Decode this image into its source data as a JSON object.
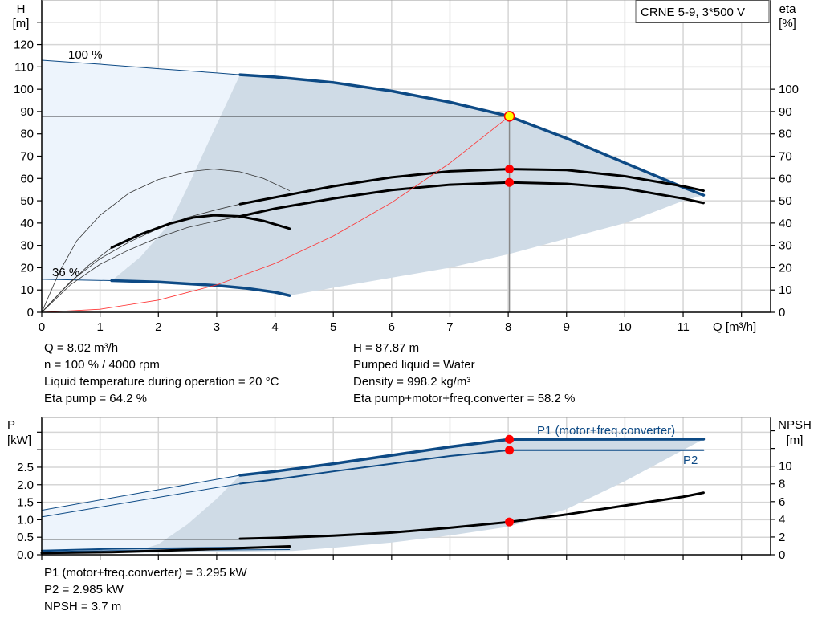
{
  "chart_data": [
    {
      "type": "line",
      "title": "",
      "legend_box": "CRNE 5-9, 3*500 V",
      "xlabel": "Q [m³/h]",
      "ylabel_left": [
        "H",
        "[m]"
      ],
      "ylabel_right": [
        "eta",
        "[%]"
      ],
      "x_ticks": [
        "0",
        "1",
        "2",
        "3",
        "4",
        "5",
        "6",
        "7",
        "8",
        "9",
        "10",
        "11"
      ],
      "y_left_ticks": [
        "0",
        "10",
        "20",
        "30",
        "40",
        "50",
        "60",
        "70",
        "80",
        "90",
        "100",
        "110",
        "120"
      ],
      "y_right_ticks": [
        "0",
        "10",
        "20",
        "30",
        "40",
        "50",
        "60",
        "70",
        "80",
        "90",
        "100"
      ],
      "xlim": [
        0,
        12.5
      ],
      "ylim_left": [
        0,
        140
      ],
      "ylim_right": [
        0,
        140
      ],
      "grid": true,
      "speed_labels": [
        "100 %",
        "36 %"
      ],
      "operating_range_dark": [
        [
          1.2,
          14.2
        ],
        [
          1.7,
          25
        ],
        [
          2.2,
          40
        ],
        [
          2.5,
          56
        ],
        [
          2.96,
          82
        ],
        [
          3.4,
          106.5
        ],
        [
          4,
          105.5
        ],
        [
          5,
          103
        ],
        [
          6,
          99
        ],
        [
          7,
          94
        ],
        [
          8,
          88
        ],
        [
          9,
          78
        ],
        [
          10,
          67
        ],
        [
          11,
          56
        ],
        [
          11.35,
          52.5
        ],
        [
          11,
          50
        ],
        [
          10,
          40
        ],
        [
          9,
          33
        ],
        [
          8,
          26
        ],
        [
          7,
          20
        ],
        [
          6,
          15.5
        ],
        [
          5,
          11
        ],
        [
          4.25,
          7.5
        ],
        [
          4,
          9
        ],
        [
          3,
          12
        ],
        [
          2,
          13.5
        ]
      ],
      "operating_range_light": [
        [
          0,
          113
        ],
        [
          1,
          111.2
        ],
        [
          2,
          109.2
        ],
        [
          3,
          107.3
        ],
        [
          3.4,
          106.5
        ],
        [
          2.96,
          82
        ],
        [
          2.5,
          56
        ],
        [
          2.2,
          40
        ],
        [
          1.7,
          25
        ],
        [
          1.2,
          14.2
        ],
        [
          0,
          14.8
        ]
      ],
      "series": [
        {
          "key": "h_100_ext",
          "axis": "left",
          "style": "thin-blue",
          "points": [
            [
              0,
              113
            ],
            [
              1,
              111.2
            ],
            [
              2,
              109.2
            ],
            [
              3,
              107.3
            ],
            [
              3.4,
              106.5
            ]
          ]
        },
        {
          "key": "h_100",
          "axis": "left",
          "style": "thick-blue",
          "points": [
            [
              3.4,
              106.5
            ],
            [
              4,
              105.5
            ],
            [
              5,
              103
            ],
            [
              6,
              99.2
            ],
            [
              7,
              94.2
            ],
            [
              8,
              88
            ],
            [
              9,
              78
            ],
            [
              10,
              67
            ],
            [
              11,
              56
            ],
            [
              11.35,
              52.5
            ]
          ]
        },
        {
          "key": "h_36_ext",
          "axis": "left",
          "style": "thin-blue",
          "points": [
            [
              0,
              14.8
            ],
            [
              1.2,
              14.2
            ]
          ]
        },
        {
          "key": "h_36",
          "axis": "left",
          "style": "thick-blue",
          "points": [
            [
              1.2,
              14.2
            ],
            [
              2,
              13.6
            ],
            [
              3,
              12
            ],
            [
              3.5,
              10.8
            ],
            [
              4,
              9
            ],
            [
              4.25,
              7.5
            ]
          ]
        },
        {
          "key": "eta_pump_36",
          "axis": "right",
          "style": "thin-black",
          "points": [
            [
              0,
              0
            ],
            [
              0.3,
              18
            ],
            [
              0.6,
              32
            ],
            [
              1,
              43.5
            ],
            [
              1.5,
              53.5
            ],
            [
              2,
              59.5
            ],
            [
              2.5,
              63
            ],
            [
              2.95,
              64.2
            ],
            [
              3.4,
              63
            ],
            [
              3.8,
              60
            ],
            [
              4.25,
              54.5
            ]
          ]
        },
        {
          "key": "eta_pump_100_ext",
          "axis": "right",
          "style": "thin-black",
          "points": [
            [
              0,
              0
            ],
            [
              0.5,
              14
            ],
            [
              1,
              24
            ],
            [
              1.5,
              31.5
            ],
            [
              2,
              37.5
            ],
            [
              2.5,
              42.5
            ],
            [
              3,
              46
            ],
            [
              3.4,
              48.5
            ]
          ]
        },
        {
          "key": "eta_pump_100",
          "axis": "right",
          "style": "thick-black",
          "points": [
            [
              3.4,
              48.5
            ],
            [
              4,
              51.5
            ],
            [
              5,
              56.5
            ],
            [
              6,
              60.5
            ],
            [
              7,
              63.2
            ],
            [
              8.02,
              64.2
            ],
            [
              9,
              63.8
            ],
            [
              10,
              61
            ],
            [
              11,
              56.5
            ],
            [
              11.35,
              54.5
            ]
          ]
        },
        {
          "key": "eta_total_36_ext",
          "axis": "right",
          "style": "thin-black",
          "points": [
            [
              0,
              0
            ],
            [
              0.4,
              11
            ],
            [
              0.8,
              21
            ],
            [
              1.2,
              29
            ]
          ]
        },
        {
          "key": "eta_total_36",
          "axis": "right",
          "style": "thick-black",
          "points": [
            [
              1.2,
              29
            ],
            [
              1.7,
              35
            ],
            [
              2.2,
              39.8
            ],
            [
              2.6,
              42.5
            ],
            [
              2.95,
              43.5
            ],
            [
              3.4,
              43
            ],
            [
              3.8,
              41
            ],
            [
              4.25,
              37.5
            ]
          ]
        },
        {
          "key": "eta_total_100_ext",
          "axis": "right",
          "style": "thin-black",
          "points": [
            [
              0,
              0
            ],
            [
              0.5,
              12.5
            ],
            [
              1,
              21.5
            ],
            [
              1.5,
              28
            ],
            [
              2,
              33.5
            ],
            [
              2.5,
              38
            ],
            [
              3,
              41
            ],
            [
              3.4,
              43
            ]
          ]
        },
        {
          "key": "eta_total_100",
          "axis": "right",
          "style": "thick-black",
          "points": [
            [
              3.4,
              43
            ],
            [
              4,
              46.5
            ],
            [
              5,
              51
            ],
            [
              6,
              54.8
            ],
            [
              7,
              57.2
            ],
            [
              8.02,
              58.2
            ],
            [
              9,
              57.6
            ],
            [
              10,
              55.5
            ],
            [
              11,
              51
            ],
            [
              11.35,
              49
            ]
          ]
        },
        {
          "key": "system_curve",
          "axis": "left",
          "style": "red",
          "points": [
            [
              0,
              0
            ],
            [
              1,
              1.37
            ],
            [
              2,
              5.47
            ],
            [
              3,
              12.3
            ],
            [
              4,
              21.9
            ],
            [
              5,
              34.2
            ],
            [
              6,
              49.2
            ],
            [
              7,
              66.9
            ],
            [
              8.02,
              87.87
            ]
          ]
        }
      ],
      "operating_point": {
        "q": 8.02,
        "h": 87.87,
        "eta_pump": 64.2,
        "eta_total": 58.2
      }
    },
    {
      "type": "line",
      "title": "",
      "ylabel_left": [
        "P",
        "[kW]"
      ],
      "ylabel_right": [
        "NPSH",
        "[m]"
      ],
      "y_left_ticks": [
        "0.0",
        "0.5",
        "1.0",
        "1.5",
        "2.0",
        "2.5"
      ],
      "y_right_ticks": [
        "0",
        "2",
        "4",
        "6",
        "8",
        "10"
      ],
      "xlim": [
        0,
        12.5
      ],
      "ylim_left": [
        0,
        3.92
      ],
      "ylim_right": [
        0,
        15.5
      ],
      "grid": true,
      "operating_range_dark": [
        [
          1.5,
          0.05
        ],
        [
          2,
          0.3
        ],
        [
          2.5,
          0.87
        ],
        [
          3,
          1.6
        ],
        [
          3.4,
          2.27
        ],
        [
          5,
          2.6
        ],
        [
          6,
          2.85
        ],
        [
          7,
          3.1
        ],
        [
          8.02,
          3.295
        ],
        [
          11.35,
          3.3
        ],
        [
          10,
          2.1
        ],
        [
          9,
          1.3
        ],
        [
          8,
          0.8
        ],
        [
          7,
          0.55
        ],
        [
          6,
          0.35
        ],
        [
          5,
          0.2
        ],
        [
          4.3,
          0.11
        ]
      ],
      "operating_range_light": [
        [
          0,
          1.27
        ],
        [
          3.4,
          2.27
        ],
        [
          3,
          1.6
        ],
        [
          2.5,
          0.87
        ],
        [
          2,
          0.3
        ],
        [
          1.5,
          0.05
        ],
        [
          0,
          0.05
        ]
      ],
      "series": [
        {
          "key": "p1_100_ext",
          "name": "P1 (motor+freq.converter)",
          "axis": "left",
          "style": "thin-blue",
          "points": [
            [
              0,
              1.27
            ],
            [
              3.4,
              2.27
            ]
          ]
        },
        {
          "key": "p1_100",
          "name": "P1 (motor+freq.converter)",
          "axis": "left",
          "style": "thick-blue",
          "points": [
            [
              3.4,
              2.27
            ],
            [
              4,
              2.38
            ],
            [
              5,
              2.6
            ],
            [
              6,
              2.84
            ],
            [
              7,
              3.08
            ],
            [
              8.02,
              3.295
            ],
            [
              11.35,
              3.3
            ]
          ]
        },
        {
          "key": "p2_100_ext",
          "name": "P2",
          "axis": "left",
          "style": "thin-blue",
          "points": [
            [
              0,
              1.08
            ],
            [
              3.4,
              2.03
            ]
          ]
        },
        {
          "key": "p2_100",
          "name": "P2",
          "axis": "left",
          "style": "mid-blue",
          "points": [
            [
              3.4,
              2.03
            ],
            [
              4,
              2.15
            ],
            [
              5,
              2.38
            ],
            [
              6,
              2.6
            ],
            [
              7,
              2.82
            ],
            [
              8.02,
              2.985
            ],
            [
              11.35,
              2.985
            ]
          ]
        },
        {
          "key": "p1_36",
          "axis": "left",
          "style": "mid-blue",
          "points": [
            [
              0,
              0.12
            ],
            [
              1.2,
              0.17
            ],
            [
              4.25,
              0.22
            ]
          ]
        },
        {
          "key": "p2_36",
          "axis": "left",
          "style": "thin-blue",
          "points": [
            [
              0,
              0.09
            ],
            [
              1.2,
              0.12
            ],
            [
              4.25,
              0.15
            ]
          ]
        },
        {
          "key": "npsh_36",
          "axis": "right",
          "style": "thick-black",
          "points": [
            [
              0,
              0.2
            ],
            [
              1.2,
              0.3
            ],
            [
              2.5,
              0.55
            ],
            [
              4.25,
              0.95
            ]
          ]
        },
        {
          "key": "npsh_100_ext",
          "axis": "right",
          "style": "thin-black",
          "points": [
            [
              0,
              1.73
            ],
            [
              3.4,
              1.73
            ]
          ]
        },
        {
          "key": "npsh_100",
          "axis": "right",
          "style": "thick-black",
          "points": [
            [
              3.4,
              1.8
            ],
            [
              4,
              1.9
            ],
            [
              5,
              2.15
            ],
            [
              6,
              2.5
            ],
            [
              7,
              3.05
            ],
            [
              8.02,
              3.7
            ],
            [
              9,
              4.55
            ],
            [
              10,
              5.55
            ],
            [
              11,
              6.55
            ],
            [
              11.35,
              7
            ]
          ]
        }
      ],
      "operating_point": {
        "q": 8.02,
        "p1": 3.295,
        "p2": 2.985,
        "npsh": 3.7
      }
    }
  ],
  "info_top": {
    "left": [
      "Q = 8.02 m³/h",
      "n = 100 % / 4000 rpm",
      "Liquid temperature during operation = 20 °C",
      "Eta pump = 64.2 %"
    ],
    "right": [
      "H = 87.87 m",
      "Pumped liquid = Water",
      "Density = 998.2 kg/m³",
      "Eta pump+motor+freq.converter = 58.2 %"
    ]
  },
  "info_bottom": [
    "P1 (motor+freq.converter) = 3.295 kW",
    "P2 = 2.985 kW",
    "NPSH = 3.7 m"
  ],
  "colors": {
    "curve_blue": "#0d4a85",
    "range_dark": "#cfdbe6",
    "range_light": "#edf4fc",
    "grid": "#d6d6d6",
    "system_curve": "#ff3333",
    "point": "#ff0000",
    "op_point": "#ffff00"
  }
}
